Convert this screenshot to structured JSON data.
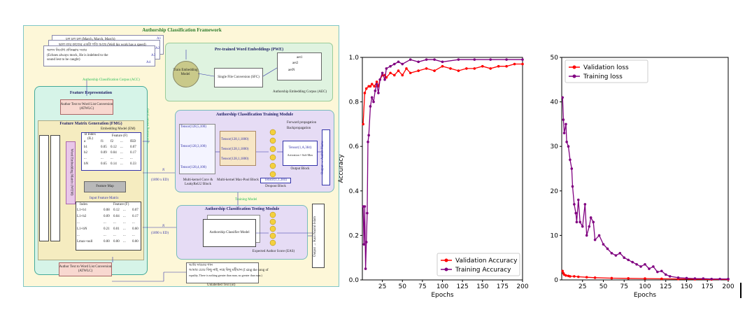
{
  "framework": {
    "title": "Authorship Classification Framework",
    "corpus": {
      "line1": "চল চল চল (March, March, March)",
      "line2": "ভাল তার কাজের একটা গতি আছে (Well his work has a speed)",
      "line3a": "অলস নির্বোধ প্রতিজ্ঞায় সবার",
      "line3b": "(Echoes always mock, He is indebted to the",
      "line3c": "sound lest to be caught)",
      "tags": [
        "A1",
        "A2",
        "A3",
        "A4"
      ],
      "label": "Authorship Classification Corpus (ACC)"
    },
    "pwe": {
      "title": "Pre-trained Word Embeddings (PWE)",
      "train": "Train Embedding Model",
      "sfc": "Single File Conversion (SFC)",
      "aec": "Authorship Embedding Corpus (AEC)",
      "aec_rows": [
        "aet1",
        "aet2",
        "aetN"
      ],
      "em_label": "Embedding Model (EM)"
    },
    "fr": {
      "title": "Feature Representation",
      "atwlc": "Author Text to Word List Conversion (ATWLC)",
      "fmg": "Feature Matrix Generation (FMG)",
      "em": "Embedding Model (EM)",
      "findex": "B Index (IL)",
      "feature_f": "Feature (F)",
      "rows": [
        [
          "a",
          "f1",
          "f2",
          "...",
          "fED"
        ],
        [
          "b1",
          "0.05",
          "0.12",
          "...",
          "0.07"
        ],
        [
          "b2",
          "0.09",
          "0.04",
          "...",
          "0.17"
        ],
        [
          "...",
          "...",
          "...",
          "...",
          "..."
        ],
        [
          "bN",
          "0.65",
          "0.14",
          "...",
          "0.33"
        ]
      ],
      "side": "Word Embedding Matrix (WEM)",
      "feature_map": "Feature Map",
      "input_fm": "Input Feature Matrix",
      "input_head": [
        "Index",
        "Feature (F)"
      ],
      "input_rows": [
        [
          "L1+b1",
          "0.08",
          "0.12",
          "...",
          "0.07"
        ],
        [
          "L1+b2",
          "0.09",
          "0.04",
          "...",
          "0.17"
        ],
        [
          "...",
          "...",
          "...",
          "...",
          "..."
        ],
        [
          "L1+bN",
          "0.21",
          "0.01",
          "...",
          "0.60"
        ],
        [
          "...",
          "...",
          "...",
          "...",
          "..."
        ],
        [
          "Lmax+null",
          "0.00",
          "0.00",
          "...",
          "0.00"
        ]
      ],
      "atwlc2": "Author Text to Word List Conversion (ATWLC)"
    },
    "train": {
      "title": "Authorship Classification Training Module",
      "fwd": "Forward propagation",
      "back": "Backpropagation",
      "t1": "Tensor(128,1,1800)",
      "t2": "Tensor(128,1,1800)",
      "t3": "Tensor(128,1,1800)",
      "tout": "Tensor(1,A,384)",
      "activation": "Activation = Soft-Max",
      "conv": "Multi-kernel Conv & LeakyReLU Block",
      "pool": "Multi-kernel Max-Pool Block",
      "dropout": "Dropout Block",
      "dropt": "Tensor(1,1,384)",
      "output_block": "Output Block",
      "output": "Output → Author Name",
      "ten_in": [
        "Tensor(128,5,100)",
        "Tensor(128,3,100)",
        "Tensor(128,4,100)"
      ],
      "N": "N",
      "NED": "(1890 x ED)"
    },
    "training_model": "Training Model",
    "test": {
      "title": "Authorship Classification Testing Module",
      "model": "Authorship Classifier Model",
      "eas": "Expected Author Score (EAS)",
      "scores": [
        "as1",
        "as2",
        "as3",
        "...",
        "asA"
      ],
      "output": "Output → Kazi Nazrul Islam",
      "N": "N",
      "NED": "(1890 x ED)"
    },
    "unlabelled": {
      "line1": "আমি সাম্যের গান",
      "line2": "আমার চেয়ে কিছু নাই, নহে কিছু মহীয়ান (I sing the song of",
      "line3": "equality, There is nothing greater than man, no greater than man.)",
      "label": "Unlabelled Text (ut)"
    }
  },
  "accuracy_chart": {
    "chart_data": {
      "type": "line",
      "xlabel": "Epochs",
      "ylabel": "Accuracy",
      "xlim": [
        0,
        200
      ],
      "ylim": [
        0,
        1.0
      ],
      "xticks": [
        25,
        50,
        75,
        100,
        125,
        150,
        175,
        200
      ],
      "yticks": [
        0.0,
        0.2,
        0.4,
        0.6,
        0.8,
        1.0
      ],
      "legend_position": "bottom-right",
      "series": [
        {
          "name": "Validation Accuracy",
          "color": "#ff0000",
          "x": [
            1,
            3,
            5,
            8,
            10,
            12,
            15,
            18,
            20,
            22,
            25,
            28,
            30,
            35,
            40,
            45,
            50,
            55,
            60,
            70,
            80,
            90,
            100,
            110,
            120,
            130,
            140,
            150,
            160,
            170,
            180,
            190,
            200
          ],
          "values": [
            0.7,
            0.84,
            0.86,
            0.87,
            0.87,
            0.88,
            0.87,
            0.89,
            0.87,
            0.9,
            0.92,
            0.92,
            0.91,
            0.93,
            0.92,
            0.94,
            0.92,
            0.95,
            0.93,
            0.94,
            0.95,
            0.94,
            0.96,
            0.95,
            0.94,
            0.95,
            0.95,
            0.96,
            0.95,
            0.96,
            0.96,
            0.97,
            0.97
          ]
        },
        {
          "name": "Training Accuracy",
          "color": "#800080",
          "x": [
            1,
            2,
            3,
            4,
            5,
            6,
            7,
            8,
            10,
            12,
            14,
            16,
            18,
            20,
            22,
            25,
            28,
            30,
            35,
            40,
            45,
            50,
            60,
            70,
            80,
            90,
            100,
            120,
            140,
            160,
            180,
            200
          ],
          "values": [
            0.33,
            0.16,
            0.33,
            0.05,
            0.17,
            0.3,
            0.62,
            0.65,
            0.78,
            0.82,
            0.8,
            0.85,
            0.88,
            0.84,
            0.9,
            0.93,
            0.9,
            0.95,
            0.96,
            0.97,
            0.98,
            0.97,
            0.99,
            0.98,
            0.99,
            0.99,
            0.98,
            0.99,
            0.99,
            0.99,
            0.99,
            0.99
          ]
        }
      ]
    }
  },
  "loss_chart": {
    "chart_data": {
      "type": "line",
      "xlabel": "Epochs",
      "ylabel": "Loss",
      "xlim": [
        0,
        200
      ],
      "ylim": [
        0,
        50
      ],
      "xticks": [
        25,
        50,
        75,
        100,
        125,
        150,
        175,
        200
      ],
      "yticks": [
        0,
        10,
        20,
        30,
        40,
        50
      ],
      "legend_position": "top-left",
      "series": [
        {
          "name": "Validation loss",
          "color": "#ff0000",
          "x": [
            1,
            2,
            3,
            5,
            8,
            10,
            15,
            20,
            30,
            40,
            60,
            80,
            100,
            120,
            140,
            160,
            180,
            200
          ],
          "values": [
            2.0,
            1.5,
            1.2,
            1.0,
            0.9,
            0.8,
            0.8,
            0.7,
            0.6,
            0.5,
            0.4,
            0.35,
            0.3,
            0.25,
            0.2,
            0.15,
            0.1,
            0.1
          ]
        },
        {
          "name": "Training loss",
          "color": "#800080",
          "x": [
            1,
            2,
            3,
            5,
            6,
            8,
            10,
            12,
            13,
            15,
            17,
            18,
            20,
            22,
            25,
            28,
            30,
            33,
            35,
            38,
            40,
            45,
            50,
            55,
            60,
            65,
            70,
            75,
            80,
            85,
            90,
            95,
            100,
            105,
            110,
            115,
            120,
            125,
            130,
            140,
            150,
            160,
            170,
            180,
            190,
            200
          ],
          "values": [
            41,
            36,
            33,
            35,
            31,
            30,
            27,
            25,
            21,
            17,
            15,
            13,
            18,
            13,
            12,
            17,
            10,
            12,
            14,
            13,
            9,
            10,
            8,
            7,
            6,
            5.5,
            6,
            5,
            4.5,
            4,
            3.5,
            3,
            3.5,
            2.5,
            3,
            1.8,
            2,
            1.2,
            0.8,
            0.5,
            0.4,
            0.3,
            0.3,
            0.2,
            0.2,
            0.2
          ]
        }
      ]
    }
  }
}
